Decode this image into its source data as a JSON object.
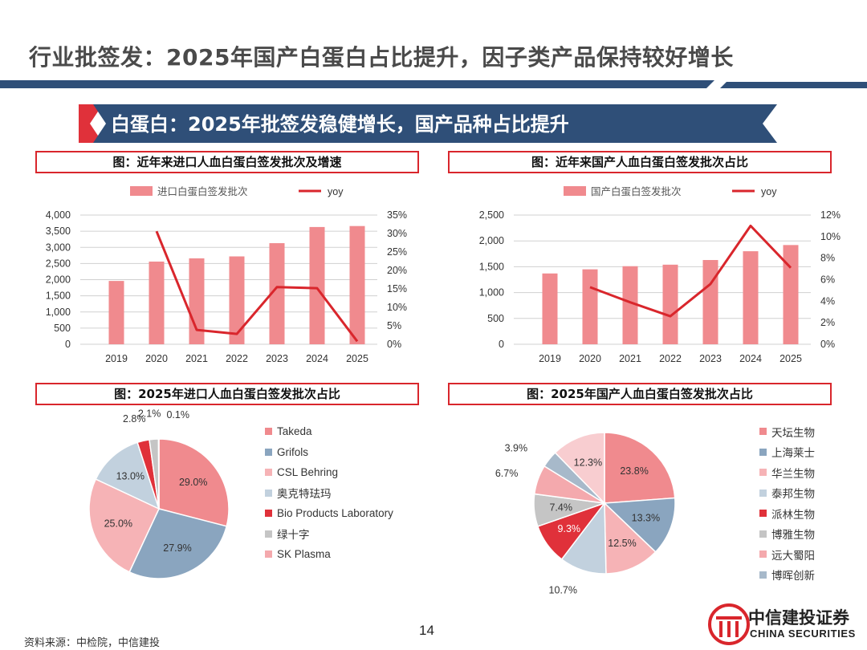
{
  "page": {
    "title": "行业批签发：2025年国产白蛋白占比提升，因子类产品保持较好增长",
    "banner": "白蛋白：2025年批签发稳健增长，国产品种占比提升",
    "page_number": "14",
    "source": "资料来源：中检院，中信建投",
    "logo_cn": "中信建投证券",
    "logo_en": "CHINA SECURITIES"
  },
  "colors": {
    "bar": "#f08a8e",
    "line": "#d9262c",
    "navy": "#2f4f78",
    "red": "#e0313a",
    "grid": "#d0d0d0"
  },
  "figures": {
    "import_trend": {
      "title": "图：近年来进口人血白蛋白签发批次及增速"
    },
    "domestic_trend": {
      "title": "图：近年来国产人血白蛋白签发批次占比"
    },
    "import_share": {
      "title": "图：2025年进口人血白蛋白签发批次占比"
    },
    "domestic_share": {
      "title": "图：2025年国产人血白蛋白签发批次占比"
    }
  },
  "chart_data": [
    {
      "id": "import_trend",
      "type": "bar",
      "title": "图：近年来进口人血白蛋白签发批次及增速",
      "categories": [
        "2019",
        "2020",
        "2021",
        "2022",
        "2023",
        "2024",
        "2025"
      ],
      "series": [
        {
          "name": "进口白蛋白签发批次",
          "type": "bar",
          "axis": "left",
          "values": [
            1960,
            2560,
            2660,
            2720,
            3130,
            3630,
            3660
          ]
        },
        {
          "name": "yoy",
          "type": "line",
          "axis": "right",
          "values": [
            null,
            30.6,
            3.9,
            2.8,
            15.5,
            15.2,
            0.8
          ]
        }
      ],
      "y_left": {
        "min": 0,
        "max": 4000,
        "ticks": [
          0,
          500,
          1000,
          1500,
          2000,
          2500,
          3000,
          3500,
          4000
        ],
        "labels": [
          "0",
          "500",
          "1,000",
          "1,500",
          "2,000",
          "2,500",
          "3,000",
          "3,500",
          "4,000"
        ]
      },
      "y_right": {
        "min": 0,
        "max": 35,
        "ticks": [
          0,
          5,
          10,
          15,
          20,
          25,
          30,
          35
        ],
        "labels": [
          "0%",
          "5%",
          "10%",
          "15%",
          "20%",
          "25%",
          "30%",
          "35%"
        ]
      },
      "legend": "top",
      "grid": true
    },
    {
      "id": "domestic_trend",
      "type": "bar",
      "title": "图：近年来国产人血白蛋白签发批次占比",
      "categories": [
        "2019",
        "2020",
        "2021",
        "2022",
        "2023",
        "2024",
        "2025"
      ],
      "series": [
        {
          "name": "国产白蛋白签发批次",
          "type": "bar",
          "axis": "left",
          "values": [
            1370,
            1450,
            1510,
            1540,
            1630,
            1800,
            1920
          ]
        },
        {
          "name": "yoy",
          "type": "line",
          "axis": "right",
          "values": [
            null,
            5.3,
            3.9,
            2.6,
            5.6,
            11.0,
            7.1
          ]
        }
      ],
      "y_left": {
        "min": 0,
        "max": 2500,
        "ticks": [
          0,
          500,
          1000,
          1500,
          2000,
          2500
        ],
        "labels": [
          "0",
          "500",
          "1,000",
          "1,500",
          "2,000",
          "2,500"
        ]
      },
      "y_right": {
        "min": 0,
        "max": 12,
        "ticks": [
          0,
          2,
          4,
          6,
          8,
          10,
          12
        ],
        "labels": [
          "0%",
          "2%",
          "4%",
          "6%",
          "8%",
          "10%",
          "12%"
        ]
      },
      "legend": "top",
      "grid": true
    },
    {
      "id": "import_share",
      "type": "pie",
      "title": "图：2025年进口人血白蛋白签发批次占比",
      "slices": [
        {
          "name": "Takeda",
          "value": 29.0,
          "label": "29.0%",
          "color": "#f08a8e"
        },
        {
          "name": "Grifols",
          "value": 27.9,
          "label": "27.9%",
          "color": "#8aa5bf"
        },
        {
          "name": "CSL Behring",
          "value": 25.0,
          "label": "25.0%",
          "color": "#f6b3b6"
        },
        {
          "name": "奥克特珐玛",
          "value": 13.0,
          "label": "13.0%",
          "color": "#c2d1de"
        },
        {
          "name": "Bio Products Laboratory",
          "value": 2.8,
          "label": "2.8%",
          "color": "#e0313a"
        },
        {
          "name": "绿十字",
          "value": 2.1,
          "label": "2.1%",
          "color": "#c5c5c5"
        },
        {
          "name": "SK Plasma",
          "value": 0.1,
          "label": "0.1%",
          "color": "#f4a9ad"
        }
      ],
      "legend": "right"
    },
    {
      "id": "domestic_share",
      "type": "pie",
      "title": "图：2025年国产人血白蛋白签发批次占比",
      "slices": [
        {
          "name": "天坛生物",
          "value": 23.8,
          "label": "23.8%",
          "color": "#f08a8e"
        },
        {
          "name": "上海莱士",
          "value": 13.3,
          "label": "13.3%",
          "color": "#8aa5bf"
        },
        {
          "name": "华兰生物",
          "value": 12.5,
          "label": "12.5%",
          "color": "#f6b3b6"
        },
        {
          "name": "泰邦生物",
          "value": 10.7,
          "label": "10.7%",
          "color": "#c2d1de"
        },
        {
          "name": "派林生物",
          "value": 9.3,
          "label": "9.3%",
          "color": "#e0313a"
        },
        {
          "name": "博雅生物",
          "value": 7.4,
          "label": "7.4%",
          "color": "#c5c5c5"
        },
        {
          "name": "远大蜀阳",
          "value": 6.7,
          "label": "6.7%",
          "color": "#f4a9ad"
        },
        {
          "name": "博晖创新",
          "value": 3.9,
          "label": "3.9%",
          "color": "#a7b9ca"
        },
        {
          "name": "",
          "value": 12.3,
          "label": "12.3%",
          "color": "#f8cdd0"
        }
      ],
      "legend": "right"
    }
  ]
}
